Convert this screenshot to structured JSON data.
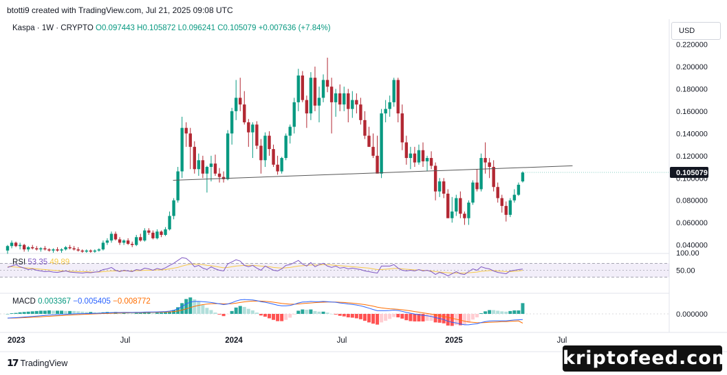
{
  "header": {
    "text": "btotti9 created with TradingView.com, Jul 21, 2025 09:08 UTC"
  },
  "legend": {
    "symbol": "Kaspa · 1W · CRYPTO",
    "open": "O0.097443",
    "high": "H0.105872",
    "low": "L0.096241",
    "close": "C0.105079",
    "change": "+0.007636 (+7.84%)"
  },
  "currency": "USD",
  "last_price": "0.105079",
  "rsi": {
    "label": "RSI",
    "value": "53.35",
    "ma": "49.89"
  },
  "macd": {
    "label": "MACD",
    "hist": "0.003367",
    "macd": "−0.005405",
    "signal": "−0.008772"
  },
  "footer": {
    "brand": "TradingView"
  },
  "watermark": "kriptofeed.com",
  "colors": {
    "up": "#089981",
    "down": "#b22833",
    "rsi": "#7e57c2",
    "rsi_ma": "#f7c948",
    "macd": "#2962ff",
    "signal": "#ff6d00"
  },
  "chart_data": {
    "type": "candlestick",
    "x_ticks": [
      "2023",
      "Jul",
      "2024",
      "Jul",
      "2025",
      "Jul"
    ],
    "y_ticks": [
      "0.220000",
      "0.200000",
      "0.180000",
      "0.160000",
      "0.140000",
      "0.120000",
      "0.100000",
      "0.080000",
      "0.060000",
      "0.040000"
    ],
    "y_range": [
      0.033,
      0.224
    ],
    "rsi_ticks": [
      "100.00",
      "50.00"
    ],
    "rsi_range": [
      0,
      100
    ],
    "macd_ticks": [
      "0.000000"
    ],
    "candles": [
      [
        0.035,
        0.04,
        0.032,
        0.039
      ],
      [
        0.039,
        0.044,
        0.037,
        0.042
      ],
      [
        0.042,
        0.043,
        0.038,
        0.039
      ],
      [
        0.039,
        0.042,
        0.036,
        0.04
      ],
      [
        0.04,
        0.041,
        0.034,
        0.036
      ],
      [
        0.036,
        0.039,
        0.034,
        0.038
      ],
      [
        0.038,
        0.04,
        0.036,
        0.037
      ],
      [
        0.037,
        0.039,
        0.035,
        0.036
      ],
      [
        0.036,
        0.038,
        0.034,
        0.037
      ],
      [
        0.037,
        0.039,
        0.035,
        0.036
      ],
      [
        0.036,
        0.037,
        0.034,
        0.035
      ],
      [
        0.035,
        0.037,
        0.033,
        0.036
      ],
      [
        0.036,
        0.038,
        0.034,
        0.035
      ],
      [
        0.035,
        0.037,
        0.033,
        0.036
      ],
      [
        0.036,
        0.039,
        0.035,
        0.038
      ],
      [
        0.038,
        0.04,
        0.036,
        0.037
      ],
      [
        0.037,
        0.039,
        0.035,
        0.036
      ],
      [
        0.036,
        0.038,
        0.034,
        0.035
      ],
      [
        0.035,
        0.036,
        0.033,
        0.034
      ],
      [
        0.034,
        0.036,
        0.033,
        0.035
      ],
      [
        0.035,
        0.036,
        0.033,
        0.034
      ],
      [
        0.034,
        0.036,
        0.033,
        0.035
      ],
      [
        0.035,
        0.037,
        0.034,
        0.036
      ],
      [
        0.036,
        0.044,
        0.035,
        0.042
      ],
      [
        0.042,
        0.046,
        0.04,
        0.044
      ],
      [
        0.044,
        0.052,
        0.042,
        0.05
      ],
      [
        0.05,
        0.052,
        0.044,
        0.045
      ],
      [
        0.045,
        0.047,
        0.04,
        0.042
      ],
      [
        0.042,
        0.045,
        0.04,
        0.044
      ],
      [
        0.044,
        0.046,
        0.04,
        0.041
      ],
      [
        0.041,
        0.043,
        0.038,
        0.04
      ],
      [
        0.04,
        0.049,
        0.039,
        0.047
      ],
      [
        0.047,
        0.05,
        0.043,
        0.044
      ],
      [
        0.044,
        0.055,
        0.043,
        0.053
      ],
      [
        0.053,
        0.055,
        0.049,
        0.051
      ],
      [
        0.051,
        0.053,
        0.045,
        0.046
      ],
      [
        0.046,
        0.054,
        0.045,
        0.052
      ],
      [
        0.052,
        0.053,
        0.047,
        0.049
      ],
      [
        0.049,
        0.056,
        0.048,
        0.054
      ],
      [
        0.054,
        0.07,
        0.053,
        0.066
      ],
      [
        0.066,
        0.082,
        0.063,
        0.08
      ],
      [
        0.08,
        0.11,
        0.078,
        0.106
      ],
      [
        0.106,
        0.155,
        0.1,
        0.145
      ],
      [
        0.145,
        0.15,
        0.128,
        0.14
      ],
      [
        0.14,
        0.145,
        0.108,
        0.128
      ],
      [
        0.128,
        0.133,
        0.104,
        0.108
      ],
      [
        0.108,
        0.122,
        0.102,
        0.116
      ],
      [
        0.116,
        0.12,
        0.1,
        0.104
      ],
      [
        0.104,
        0.111,
        0.087,
        0.11
      ],
      [
        0.11,
        0.12,
        0.097,
        0.113
      ],
      [
        0.113,
        0.121,
        0.102,
        0.104
      ],
      [
        0.104,
        0.109,
        0.096,
        0.101
      ],
      [
        0.101,
        0.106,
        0.096,
        0.099
      ],
      [
        0.099,
        0.143,
        0.098,
        0.14
      ],
      [
        0.14,
        0.163,
        0.13,
        0.16
      ],
      [
        0.16,
        0.188,
        0.152,
        0.172
      ],
      [
        0.172,
        0.19,
        0.16,
        0.166
      ],
      [
        0.166,
        0.178,
        0.148,
        0.15
      ],
      [
        0.15,
        0.153,
        0.128,
        0.141
      ],
      [
        0.141,
        0.15,
        0.118,
        0.148
      ],
      [
        0.148,
        0.151,
        0.126,
        0.129
      ],
      [
        0.129,
        0.135,
        0.104,
        0.116
      ],
      [
        0.116,
        0.141,
        0.11,
        0.138
      ],
      [
        0.138,
        0.142,
        0.12,
        0.126
      ],
      [
        0.126,
        0.13,
        0.11,
        0.112
      ],
      [
        0.112,
        0.12,
        0.103,
        0.106
      ],
      [
        0.106,
        0.119,
        0.104,
        0.118
      ],
      [
        0.118,
        0.14,
        0.116,
        0.138
      ],
      [
        0.138,
        0.148,
        0.131,
        0.146
      ],
      [
        0.146,
        0.172,
        0.14,
        0.168
      ],
      [
        0.168,
        0.198,
        0.16,
        0.192
      ],
      [
        0.192,
        0.196,
        0.168,
        0.17
      ],
      [
        0.17,
        0.174,
        0.145,
        0.158
      ],
      [
        0.158,
        0.195,
        0.152,
        0.19
      ],
      [
        0.19,
        0.2,
        0.16,
        0.165
      ],
      [
        0.165,
        0.182,
        0.15,
        0.172
      ],
      [
        0.172,
        0.193,
        0.168,
        0.188
      ],
      [
        0.188,
        0.208,
        0.177,
        0.182
      ],
      [
        0.182,
        0.19,
        0.14,
        0.168
      ],
      [
        0.168,
        0.18,
        0.155,
        0.176
      ],
      [
        0.176,
        0.184,
        0.16,
        0.166
      ],
      [
        0.166,
        0.182,
        0.16,
        0.176
      ],
      [
        0.176,
        0.18,
        0.15,
        0.162
      ],
      [
        0.162,
        0.178,
        0.154,
        0.17
      ],
      [
        0.17,
        0.176,
        0.158,
        0.166
      ],
      [
        0.166,
        0.172,
        0.148,
        0.152
      ],
      [
        0.152,
        0.16,
        0.135,
        0.138
      ],
      [
        0.138,
        0.146,
        0.128,
        0.128
      ],
      [
        0.128,
        0.14,
        0.118,
        0.12
      ],
      [
        0.12,
        0.138,
        0.105,
        0.104
      ],
      [
        0.104,
        0.162,
        0.1,
        0.158
      ],
      [
        0.158,
        0.17,
        0.15,
        0.162
      ],
      [
        0.162,
        0.174,
        0.155,
        0.168
      ],
      [
        0.168,
        0.19,
        0.164,
        0.188
      ],
      [
        0.188,
        0.19,
        0.15,
        0.158
      ],
      [
        0.158,
        0.166,
        0.125,
        0.132
      ],
      [
        0.132,
        0.138,
        0.112,
        0.118
      ],
      [
        0.118,
        0.128,
        0.108,
        0.122
      ],
      [
        0.122,
        0.128,
        0.11,
        0.114
      ],
      [
        0.114,
        0.13,
        0.112,
        0.125
      ],
      [
        0.125,
        0.132,
        0.11,
        0.115
      ],
      [
        0.115,
        0.12,
        0.106,
        0.118
      ],
      [
        0.118,
        0.124,
        0.108,
        0.111
      ],
      [
        0.111,
        0.114,
        0.08,
        0.088
      ],
      [
        0.088,
        0.1,
        0.083,
        0.097
      ],
      [
        0.097,
        0.1,
        0.082,
        0.086
      ],
      [
        0.086,
        0.09,
        0.064,
        0.064
      ],
      [
        0.064,
        0.083,
        0.06,
        0.07
      ],
      [
        0.07,
        0.085,
        0.066,
        0.082
      ],
      [
        0.082,
        0.088,
        0.064,
        0.068
      ],
      [
        0.068,
        0.07,
        0.058,
        0.064
      ],
      [
        0.064,
        0.08,
        0.058,
        0.078
      ],
      [
        0.078,
        0.098,
        0.076,
        0.096
      ],
      [
        0.096,
        0.108,
        0.088,
        0.09
      ],
      [
        0.09,
        0.122,
        0.088,
        0.118
      ],
      [
        0.118,
        0.132,
        0.104,
        0.114
      ],
      [
        0.114,
        0.118,
        0.1,
        0.11
      ],
      [
        0.11,
        0.116,
        0.088,
        0.092
      ],
      [
        0.092,
        0.096,
        0.078,
        0.082
      ],
      [
        0.082,
        0.085,
        0.069,
        0.075
      ],
      [
        0.075,
        0.079,
        0.061,
        0.067
      ],
      [
        0.067,
        0.082,
        0.065,
        0.08
      ],
      [
        0.08,
        0.09,
        0.078,
        0.085
      ],
      [
        0.085,
        0.096,
        0.084,
        0.094
      ],
      [
        0.097,
        0.106,
        0.096,
        0.105
      ]
    ],
    "trendline": {
      "start": [
        40,
        0.098
      ],
      "end": [
        136,
        0.111
      ]
    },
    "rsi_series": [
      58,
      62,
      66,
      60,
      56,
      52,
      54,
      50,
      48,
      46,
      47,
      45,
      44,
      46,
      48,
      45,
      44,
      43,
      42,
      44,
      43,
      45,
      46,
      52,
      54,
      58,
      50,
      46,
      50,
      48,
      46,
      52,
      50,
      56,
      54,
      50,
      55,
      52,
      57,
      64,
      70,
      78,
      86,
      84,
      74,
      60,
      64,
      56,
      52,
      60,
      54,
      50,
      48,
      68,
      74,
      80,
      76,
      64,
      60,
      64,
      56,
      50,
      62,
      56,
      50,
      48,
      54,
      64,
      66,
      72,
      78,
      68,
      62,
      72,
      60,
      66,
      70,
      62,
      58,
      62,
      56,
      58,
      54,
      56,
      54,
      52,
      48,
      46,
      44,
      42,
      62,
      62,
      62,
      66,
      56,
      50,
      48,
      50,
      48,
      52,
      48,
      50,
      46,
      38,
      44,
      40,
      34,
      40,
      46,
      40,
      38,
      46,
      54,
      50,
      60,
      56,
      54,
      48,
      44,
      42,
      40,
      48,
      50,
      52,
      53.35
    ],
    "rsi_ma_series": [
      60,
      60,
      59,
      58,
      57,
      56,
      55,
      54,
      53,
      52,
      51,
      50,
      49,
      48,
      48,
      47,
      47,
      46,
      46,
      46,
      45,
      45,
      45,
      46,
      47,
      48,
      48,
      48,
      48,
      48,
      48,
      49,
      49,
      50,
      50,
      50,
      51,
      51,
      52,
      54,
      56,
      58,
      62,
      65,
      67,
      67,
      67,
      66,
      64,
      63,
      61,
      59,
      57,
      58,
      60,
      62,
      63,
      64,
      64,
      64,
      63,
      62,
      61,
      60,
      58,
      57,
      56,
      57,
      58,
      60,
      62,
      63,
      64,
      65,
      65,
      65,
      66,
      66,
      65,
      64,
      63,
      62,
      61,
      60,
      59,
      58,
      57,
      56,
      54,
      52,
      52,
      53,
      54,
      55,
      55,
      54,
      53,
      52,
      51,
      51,
      50,
      49,
      48,
      46,
      45,
      44,
      43,
      42,
      42,
      42,
      42,
      43,
      44,
      45,
      47,
      48,
      49,
      49,
      48,
      47,
      46,
      46,
      47,
      48,
      49.89
    ],
    "macd_series": [
      -0.004,
      -0.0038,
      -0.0036,
      -0.0033,
      -0.003,
      -0.0027,
      -0.0024,
      -0.0021,
      -0.0018,
      -0.0015,
      -0.0012,
      -0.001,
      -0.0008,
      -0.0006,
      -0.0004,
      -0.0002,
      0,
      0.0001,
      0.0002,
      0.0003,
      0.0004,
      0.0005,
      0.0006,
      0.0008,
      0.001,
      0.0012,
      0.0013,
      0.0013,
      0.0014,
      0.0014,
      0.0014,
      0.0015,
      0.0015,
      0.0017,
      0.0018,
      0.0018,
      0.0019,
      0.002,
      0.0022,
      0.0026,
      0.0034,
      0.0048,
      0.007,
      0.0095,
      0.0112,
      0.0118,
      0.0119,
      0.0116,
      0.0112,
      0.0108,
      0.0102,
      0.0095,
      0.0088,
      0.0094,
      0.0106,
      0.0122,
      0.0133,
      0.0136,
      0.0134,
      0.0132,
      0.0126,
      0.0116,
      0.011,
      0.0102,
      0.0092,
      0.0082,
      0.0076,
      0.0076,
      0.008,
      0.009,
      0.0104,
      0.0112,
      0.0114,
      0.0118,
      0.0116,
      0.0116,
      0.0118,
      0.0116,
      0.0112,
      0.011,
      0.0104,
      0.01,
      0.0094,
      0.009,
      0.0084,
      0.0076,
      0.0066,
      0.0054,
      0.0042,
      0.003,
      0.003,
      0.003,
      0.0032,
      0.0036,
      0.0032,
      0.0024,
      0.0014,
      0.0006,
      -0.0002,
      -0.0008,
      -0.0014,
      -0.0018,
      -0.0024,
      -0.0036,
      -0.0044,
      -0.0054,
      -0.007,
      -0.008,
      -0.0086,
      -0.0096,
      -0.0104,
      -0.0104,
      -0.0098,
      -0.0094,
      -0.0082,
      -0.0074,
      -0.0068,
      -0.0066,
      -0.0066,
      -0.0066,
      -0.0066,
      -0.0062,
      -0.0058,
      -0.0056,
      -0.0054
    ],
    "signal_series": [
      -0.004,
      -0.004,
      -0.0039,
      -0.0038,
      -0.0036,
      -0.0034,
      -0.0032,
      -0.003,
      -0.0028,
      -0.0025,
      -0.0023,
      -0.002,
      -0.0018,
      -0.0016,
      -0.0013,
      -0.0011,
      -0.0009,
      -0.0007,
      -0.0005,
      -0.0003,
      -0.0002,
      0,
      0.0001,
      0.0003,
      0.0004,
      0.0006,
      0.0007,
      0.0008,
      0.0009,
      0.001,
      0.0011,
      0.0012,
      0.0012,
      0.0013,
      0.0014,
      0.0015,
      0.0015,
      0.0016,
      0.0017,
      0.0019,
      0.0022,
      0.0027,
      0.0036,
      0.0048,
      0.006,
      0.0072,
      0.0081,
      0.0088,
      0.0093,
      0.0096,
      0.0098,
      0.0097,
      0.0095,
      0.0095,
      0.0097,
      0.0102,
      0.0108,
      0.0114,
      0.0118,
      0.0121,
      0.0122,
      0.0121,
      0.0119,
      0.0116,
      0.0111,
      0.0105,
      0.0099,
      0.0095,
      0.0092,
      0.0092,
      0.0094,
      0.0098,
      0.0101,
      0.0104,
      0.0107,
      0.0109,
      0.0111,
      0.0112,
      0.0112,
      0.0112,
      0.011,
      0.0108,
      0.0105,
      0.0102,
      0.0098,
      0.0093,
      0.0088,
      0.0081,
      0.0073,
      0.0064,
      0.0057,
      0.0052,
      0.0048,
      0.0046,
      0.0043,
      0.0039,
      0.0034,
      0.0029,
      0.0022,
      0.0016,
      0.001,
      0.0004,
      -0.0002,
      -0.0009,
      -0.0016,
      -0.0024,
      -0.0033,
      -0.0042,
      -0.0051,
      -0.006,
      -0.0069,
      -0.0076,
      -0.008,
      -0.0083,
      -0.0084,
      -0.0082,
      -0.008,
      -0.0078,
      -0.0076,
      -0.0074,
      -0.0073,
      -0.0071,
      -0.0069,
      -0.0067,
      -0.0088
    ]
  }
}
